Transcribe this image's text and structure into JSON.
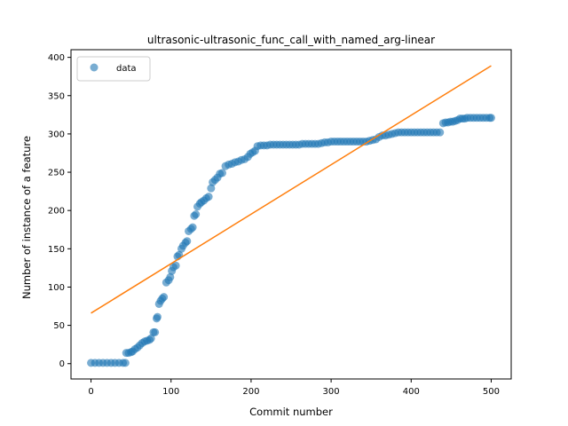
{
  "chart_data": {
    "type": "scatter",
    "title": "ultrasonic-ultrasonic_func_call_with_named_arg-linear",
    "xlabel": "Commit number",
    "ylabel": "Number of instance of a feature",
    "xlim": [
      -25,
      525
    ],
    "ylim": [
      -20,
      410
    ],
    "xticks": [
      0,
      100,
      200,
      300,
      400,
      500
    ],
    "yticks": [
      0,
      50,
      100,
      150,
      200,
      250,
      300,
      350,
      400
    ],
    "legend": {
      "position": "top-left",
      "entries": [
        "data"
      ]
    },
    "grid": false,
    "colors": {
      "data": "#1f77b4",
      "fit": "#ff7f0e"
    },
    "series": [
      {
        "name": "data",
        "type": "scatter",
        "points": [
          [
            0,
            1
          ],
          [
            5,
            1
          ],
          [
            10,
            1
          ],
          [
            15,
            1
          ],
          [
            20,
            1
          ],
          [
            25,
            1
          ],
          [
            30,
            1
          ],
          [
            35,
            1
          ],
          [
            40,
            1
          ],
          [
            43,
            1
          ],
          [
            44,
            14
          ],
          [
            47,
            14
          ],
          [
            50,
            15
          ],
          [
            52,
            16
          ],
          [
            55,
            19
          ],
          [
            58,
            21
          ],
          [
            61,
            24
          ],
          [
            64,
            27
          ],
          [
            67,
            29
          ],
          [
            70,
            30
          ],
          [
            73,
            31
          ],
          [
            75,
            33
          ],
          [
            78,
            41
          ],
          [
            80,
            41
          ],
          [
            82,
            59
          ],
          [
            83,
            61
          ],
          [
            85,
            78
          ],
          [
            87,
            82
          ],
          [
            89,
            85
          ],
          [
            91,
            87
          ],
          [
            94,
            106
          ],
          [
            97,
            109
          ],
          [
            99,
            113
          ],
          [
            101,
            121
          ],
          [
            103,
            126
          ],
          [
            106,
            128
          ],
          [
            108,
            140
          ],
          [
            110,
            142
          ],
          [
            113,
            150
          ],
          [
            115,
            154
          ],
          [
            118,
            158
          ],
          [
            120,
            160
          ],
          [
            122,
            173
          ],
          [
            125,
            176
          ],
          [
            127,
            178
          ],
          [
            129,
            193
          ],
          [
            131,
            195
          ],
          [
            133,
            205
          ],
          [
            136,
            209
          ],
          [
            138,
            211
          ],
          [
            141,
            213
          ],
          [
            144,
            216
          ],
          [
            147,
            218
          ],
          [
            150,
            229
          ],
          [
            152,
            237
          ],
          [
            155,
            240
          ],
          [
            158,
            243
          ],
          [
            161,
            248
          ],
          [
            164,
            249
          ],
          [
            168,
            258
          ],
          [
            172,
            260
          ],
          [
            176,
            261
          ],
          [
            180,
            263
          ],
          [
            184,
            264
          ],
          [
            188,
            266
          ],
          [
            192,
            267
          ],
          [
            196,
            270
          ],
          [
            199,
            274
          ],
          [
            202,
            276
          ],
          [
            205,
            278
          ],
          [
            208,
            284
          ],
          [
            212,
            285
          ],
          [
            216,
            285
          ],
          [
            220,
            285
          ],
          [
            224,
            286
          ],
          [
            228,
            286
          ],
          [
            232,
            286
          ],
          [
            236,
            286
          ],
          [
            240,
            286
          ],
          [
            244,
            286
          ],
          [
            248,
            286
          ],
          [
            252,
            286
          ],
          [
            256,
            286
          ],
          [
            260,
            286
          ],
          [
            264,
            287
          ],
          [
            268,
            287
          ],
          [
            272,
            287
          ],
          [
            276,
            287
          ],
          [
            280,
            287
          ],
          [
            284,
            287
          ],
          [
            288,
            288
          ],
          [
            292,
            289
          ],
          [
            296,
            289
          ],
          [
            300,
            290
          ],
          [
            304,
            290
          ],
          [
            308,
            290
          ],
          [
            312,
            290
          ],
          [
            316,
            290
          ],
          [
            320,
            290
          ],
          [
            324,
            290
          ],
          [
            328,
            290
          ],
          [
            332,
            290
          ],
          [
            336,
            290
          ],
          [
            340,
            290
          ],
          [
            344,
            290
          ],
          [
            348,
            291
          ],
          [
            352,
            292
          ],
          [
            356,
            293
          ],
          [
            360,
            296
          ],
          [
            364,
            298
          ],
          [
            368,
            298
          ],
          [
            372,
            299
          ],
          [
            376,
            300
          ],
          [
            380,
            301
          ],
          [
            384,
            302
          ],
          [
            388,
            302
          ],
          [
            392,
            302
          ],
          [
            396,
            302
          ],
          [
            400,
            302
          ],
          [
            404,
            302
          ],
          [
            408,
            302
          ],
          [
            412,
            302
          ],
          [
            416,
            302
          ],
          [
            420,
            302
          ],
          [
            424,
            302
          ],
          [
            428,
            302
          ],
          [
            432,
            302
          ],
          [
            436,
            302
          ],
          [
            440,
            314
          ],
          [
            443,
            315
          ],
          [
            446,
            315
          ],
          [
            449,
            316
          ],
          [
            452,
            316
          ],
          [
            455,
            317
          ],
          [
            458,
            318
          ],
          [
            461,
            320
          ],
          [
            464,
            320
          ],
          [
            467,
            320
          ],
          [
            470,
            321
          ],
          [
            474,
            321
          ],
          [
            478,
            321
          ],
          [
            482,
            321
          ],
          [
            486,
            321
          ],
          [
            490,
            321
          ],
          [
            494,
            321
          ],
          [
            498,
            321
          ],
          [
            500,
            321
          ]
        ]
      },
      {
        "type": "line",
        "points": [
          [
            0,
            66
          ],
          [
            500,
            389
          ]
        ]
      }
    ]
  }
}
